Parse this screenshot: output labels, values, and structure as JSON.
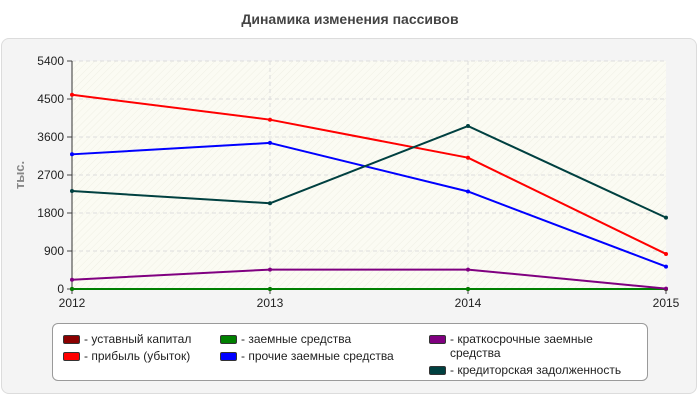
{
  "title": "Динамика изменения пассивов",
  "chart_data": {
    "type": "line",
    "x": [
      "2012",
      "2013",
      "2014",
      "2015"
    ],
    "ylabel": "тыс.",
    "ylim": [
      0,
      5400
    ],
    "yticks": [
      "0",
      "900",
      "1800",
      "2700",
      "3600",
      "4500",
      "5400"
    ],
    "grid": true,
    "legend_position": "bottom",
    "series": [
      {
        "name": "- уставный капитал",
        "color": "#8b0000",
        "values": [
          0,
          0,
          0,
          0
        ]
      },
      {
        "name": "- заемные средства",
        "color": "#008000",
        "values": [
          0,
          0,
          0,
          0
        ]
      },
      {
        "name": "- краткосрочные заемные средства",
        "color": "#800080",
        "values": [
          220,
          460,
          460,
          10
        ]
      },
      {
        "name": "- прибыль (убыток)",
        "color": "#ff0000",
        "values": [
          4600,
          4010,
          3110,
          830
        ]
      },
      {
        "name": "- прочие заемные средства",
        "color": "#0000ff",
        "values": [
          3190,
          3460,
          2310,
          530
        ]
      },
      {
        "name": "- кредиторская задолженность",
        "color": "#004040",
        "values": [
          2320,
          2030,
          3860,
          1690
        ]
      }
    ]
  }
}
